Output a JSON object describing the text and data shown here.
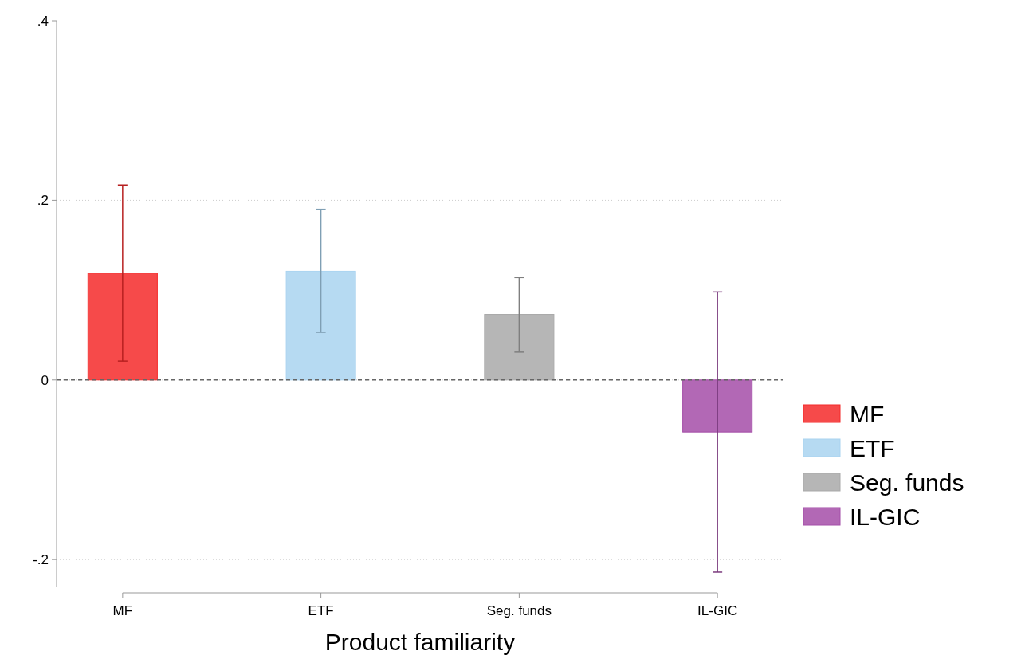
{
  "chart_data": {
    "type": "bar",
    "xlabel": "Product familiarity",
    "categories": [
      "MF",
      "ETF",
      "Seg. funds",
      "IL-GIC"
    ],
    "stacked": true,
    "series": [
      {
        "name": "MF",
        "color": "#f42a2a",
        "values": [
          0.119,
          null,
          null,
          null
        ],
        "errors": [
          [
            0.021,
            0.217
          ],
          null,
          null,
          null
        ]
      },
      {
        "name": "ETF",
        "color": "#a9d3f0",
        "values": [
          null,
          0.121,
          null,
          null
        ],
        "errors": [
          null,
          [
            0.053,
            0.19
          ],
          null,
          null
        ]
      },
      {
        "name": "Seg. funds",
        "color": "#a9a9a9",
        "values": [
          null,
          null,
          0.073,
          null
        ],
        "errors": [
          null,
          null,
          [
            0.031,
            0.114
          ],
          null
        ]
      },
      {
        "name": "IL-GIC",
        "color": "#a44ea8",
        "values": [
          null,
          null,
          null,
          -0.058
        ],
        "errors": [
          null,
          null,
          null,
          [
            -0.214,
            0.098
          ]
        ]
      }
    ],
    "ylim": [
      -0.23,
      0.4
    ],
    "yticks": [
      {
        "value": 0.4,
        "label": ".4"
      },
      {
        "value": 0.2,
        "label": ".2"
      },
      0,
      {
        "value": -0.2,
        "label": "-.2"
      }
    ],
    "grid": "y",
    "legend": "right",
    "ref_lines": [
      {
        "axis": "y",
        "value": 0,
        "line_style": "dashed",
        "color": "#666666"
      }
    ]
  }
}
